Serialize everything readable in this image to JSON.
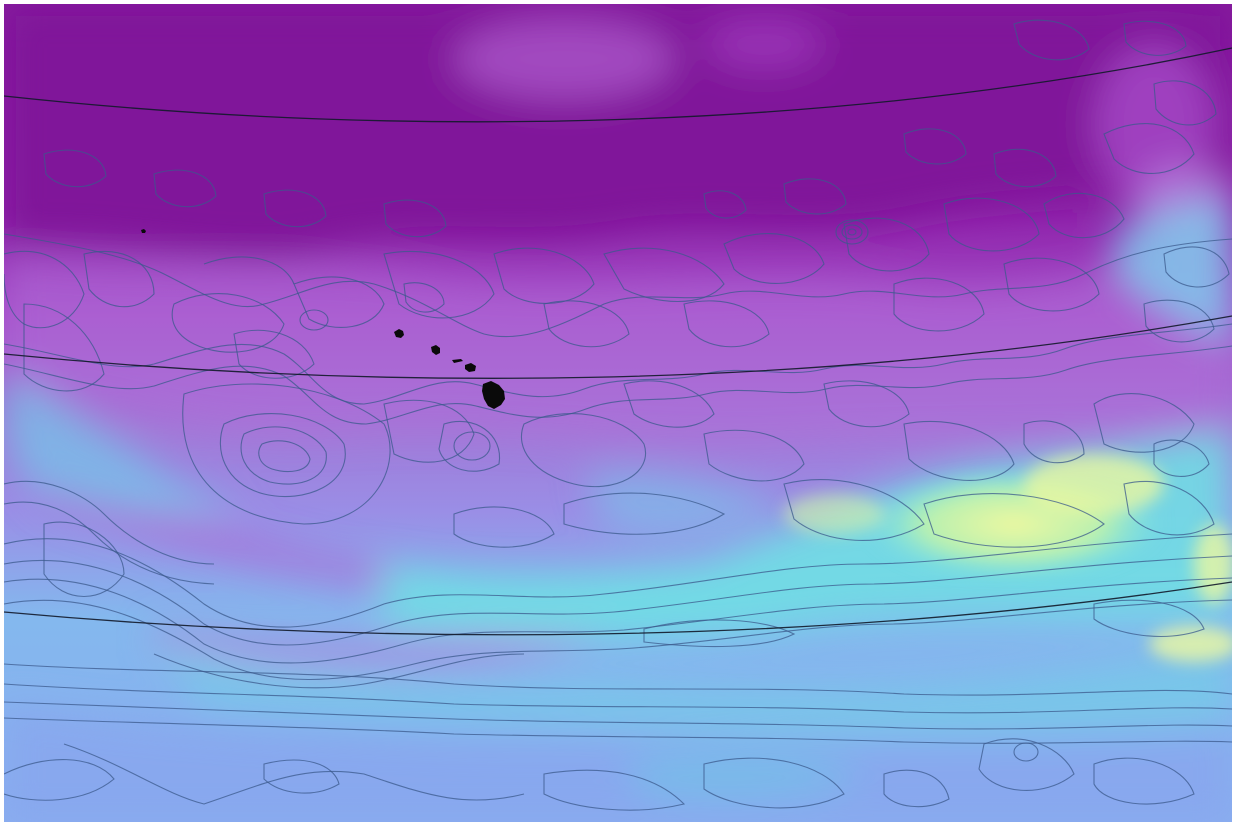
{
  "map": {
    "palette": {
      "deep": "#82119a",
      "purple": "#a03cc6",
      "violet": "#b26ad9",
      "lavender": "#a890e6",
      "blue": "#8aaaf0",
      "cyan": "#6ae0e6",
      "yellow": "#e6f6a2",
      "contour": "#3b5a8c",
      "graticule": "#121a2a",
      "land": "#0a0a0a"
    },
    "graticule_lines": 3,
    "landmasses": [
      "niihau",
      "kauai",
      "oahu",
      "molokai",
      "maui",
      "hawaii-island"
    ]
  }
}
